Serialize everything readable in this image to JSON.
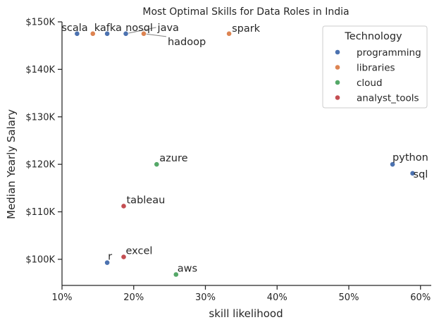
{
  "chart_data": {
    "type": "scatter",
    "title": "Most Optimal Skills for Data Roles in India",
    "xlabel": "skill likelihood",
    "ylabel": "Median Yearly Salary",
    "xlim": [
      10,
      61.5
    ],
    "ylim": [
      94500,
      150000
    ],
    "x_ticks": [
      10,
      20,
      30,
      40,
      50,
      60
    ],
    "x_tick_labels": [
      "10%",
      "20%",
      "30%",
      "40%",
      "50%",
      "60%"
    ],
    "y_ticks": [
      100000,
      110000,
      120000,
      130000,
      140000,
      150000
    ],
    "y_tick_labels": [
      "$100K",
      "$110K",
      "$120K",
      "$130K",
      "$140K",
      "$150K"
    ],
    "grid": false,
    "legend": {
      "title": "Technology",
      "position": "top-right",
      "entries": [
        {
          "name": "programming",
          "color": "#4c72b0"
        },
        {
          "name": "libraries",
          "color": "#dd8452"
        },
        {
          "name": "cloud",
          "color": "#55a868"
        },
        {
          "name": "analyst_tools",
          "color": "#c44e52"
        }
      ]
    },
    "points": [
      {
        "skill": "scala",
        "technology": "programming",
        "x": 12.1,
        "y": 147500
      },
      {
        "skill": "kafka",
        "technology": "libraries",
        "x": 14.3,
        "y": 147500
      },
      {
        "skill": "nosql",
        "technology": "programming",
        "x": 16.3,
        "y": 147500
      },
      {
        "skill": "java",
        "technology": "programming",
        "x": 18.9,
        "y": 147500
      },
      {
        "skill": "hadoop",
        "technology": "libraries",
        "x": 21.4,
        "y": 147500
      },
      {
        "skill": "spark",
        "technology": "libraries",
        "x": 33.3,
        "y": 147500
      },
      {
        "skill": "azure",
        "technology": "cloud",
        "x": 23.2,
        "y": 120000
      },
      {
        "skill": "python",
        "technology": "programming",
        "x": 56.1,
        "y": 120000
      },
      {
        "skill": "sql",
        "technology": "programming",
        "x": 58.9,
        "y": 118100
      },
      {
        "skill": "tableau",
        "technology": "analyst_tools",
        "x": 18.6,
        "y": 111200
      },
      {
        "skill": "excel",
        "technology": "analyst_tools",
        "x": 18.6,
        "y": 100500
      },
      {
        "skill": "r",
        "technology": "programming",
        "x": 16.3,
        "y": 99300
      },
      {
        "skill": "aws",
        "technology": "cloud",
        "x": 25.9,
        "y": 96800
      }
    ]
  }
}
